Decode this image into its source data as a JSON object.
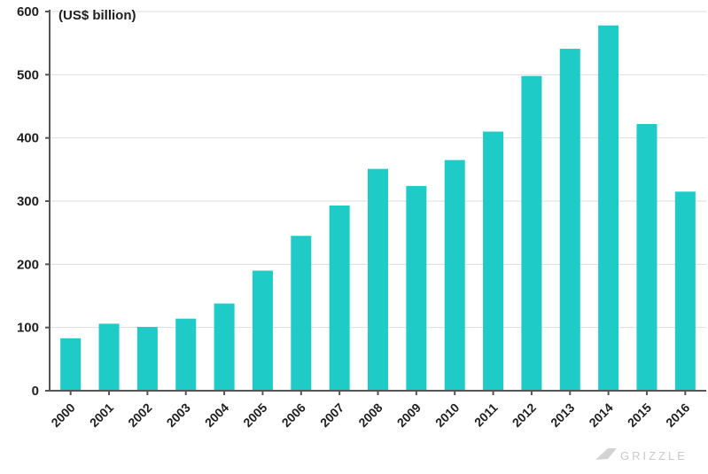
{
  "chart_data": {
    "type": "bar",
    "title": "",
    "unit_label": "(US$ billion)",
    "xlabel": "",
    "ylabel": "",
    "categories": [
      "2000",
      "2001",
      "2002",
      "2003",
      "2004",
      "2005",
      "2006",
      "2007",
      "2008",
      "2009",
      "2010",
      "2011",
      "2012",
      "2013",
      "2014",
      "2015",
      "2016"
    ],
    "values": [
      83,
      106,
      101,
      114,
      138,
      190,
      245,
      293,
      351,
      324,
      365,
      410,
      498,
      541,
      578,
      422,
      315
    ],
    "ylim": [
      0,
      600
    ],
    "yticks": [
      0,
      100,
      200,
      300,
      400,
      500,
      600
    ],
    "grid": true,
    "colors": {
      "bar": "#1ecbc7",
      "axis": "#555555",
      "grid": "#dddddd",
      "text": "#1f1f1f"
    }
  },
  "watermark": {
    "text": "GRIZZLE",
    "icon": "grizzle-logo-icon"
  }
}
